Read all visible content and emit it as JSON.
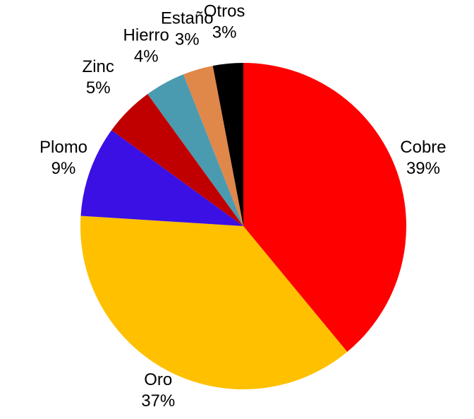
{
  "chart_data": {
    "type": "pie",
    "categories": [
      "Cobre",
      "Oro",
      "Plomo",
      "Zinc",
      "Hierro",
      "Estaño",
      "Otros"
    ],
    "values": [
      39,
      37,
      9,
      5,
      4,
      3,
      3
    ],
    "value_labels": [
      "39%",
      "37%",
      "9%",
      "5%",
      "4%",
      "3%",
      "3%"
    ],
    "colors": [
      "#ff0000",
      "#ffc000",
      "#3a10e5",
      "#c00000",
      "#4a9bb0",
      "#e0874a",
      "#000000"
    ]
  }
}
